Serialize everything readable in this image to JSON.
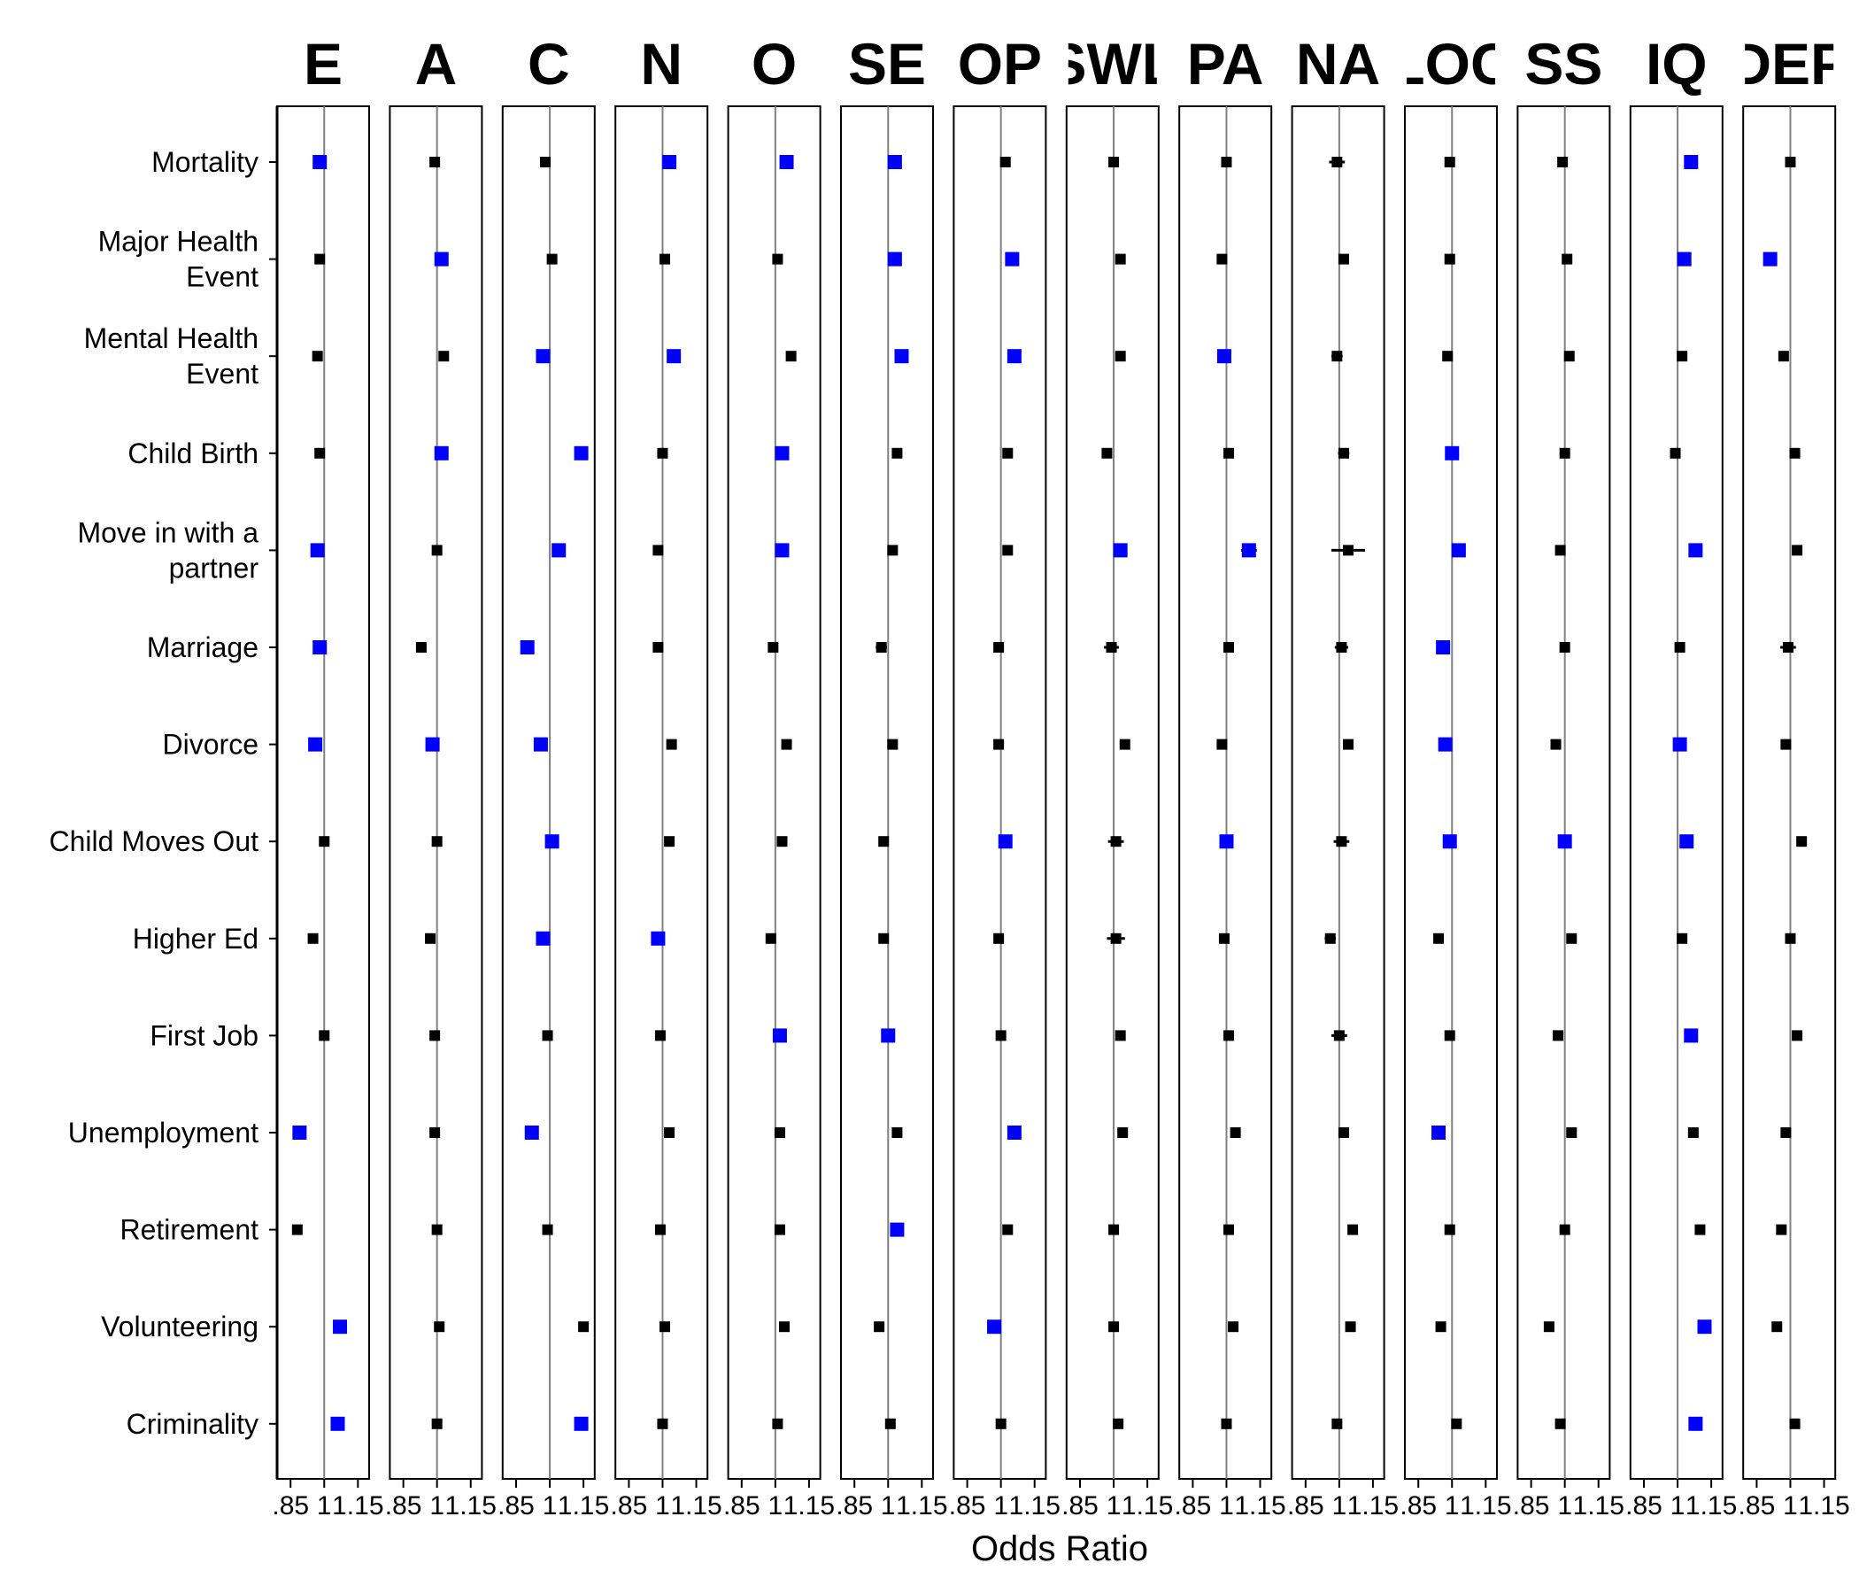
{
  "chart_data": {
    "type": "forest",
    "xlabel": "Odds Ratio",
    "xticks": [
      0.85,
      1,
      1.15
    ],
    "xtick_labels": [
      ".85",
      "1",
      "1.15"
    ],
    "xlim": [
      0.79,
      1.2
    ],
    "reference_line": 1,
    "grid": false,
    "colors": {
      "significant": "#0000ff",
      "nonsignificant": "#000000",
      "reference": "#808080"
    },
    "panels": [
      "E",
      "A",
      "C",
      "N",
      "O",
      "SE",
      "OP",
      "SWL",
      "PA",
      "NA",
      "LOC",
      "SS",
      "IQ",
      "DEP"
    ],
    "panel_titles": [
      "E",
      "A",
      "C",
      "N",
      "O",
      "SE",
      "OP",
      "SWL",
      "PA",
      "NA",
      "LOC",
      "SS",
      "IQ",
      "DEP"
    ],
    "events": [
      "Mortality",
      "Major Health\nEvent",
      "Mental Health\nEvent",
      "Child Birth",
      "Move in with a\npartner",
      "Marriage",
      "Divorce",
      "Child Moves Out",
      "Higher Ed",
      "First Job",
      "Unemployment",
      "Retirement",
      "Volunteering",
      "Criminality"
    ],
    "estimates": [
      [
        0.98,
        0.99,
        0.98,
        1.03,
        1.05,
        1.03,
        1.02,
        1.0,
        1.0,
        0.99,
        0.99,
        0.99,
        1.06,
        1.0
      ],
      [
        0.98,
        1.02,
        1.01,
        1.01,
        1.01,
        1.03,
        1.05,
        1.03,
        0.98,
        1.02,
        0.99,
        1.01,
        1.03,
        0.91
      ],
      [
        0.97,
        1.03,
        0.97,
        1.05,
        1.07,
        1.06,
        1.06,
        1.03,
        0.99,
        0.99,
        0.98,
        1.02,
        1.02,
        0.97
      ],
      [
        0.98,
        1.02,
        1.14,
        1.0,
        1.03,
        1.04,
        1.03,
        0.97,
        1.01,
        1.02,
        1.0,
        1.0,
        0.99,
        1.02
      ],
      [
        0.97,
        1.0,
        1.04,
        0.98,
        1.03,
        1.02,
        1.03,
        1.03,
        1.1,
        1.04,
        1.03,
        0.98,
        1.08,
        1.03
      ],
      [
        0.98,
        0.93,
        0.9,
        0.98,
        0.99,
        0.97,
        0.99,
        0.99,
        1.01,
        1.01,
        0.96,
        1.0,
        1.01,
        0.99
      ],
      [
        0.96,
        0.98,
        0.96,
        1.04,
        1.05,
        1.02,
        0.99,
        1.05,
        0.98,
        1.04,
        0.97,
        0.96,
        1.01,
        0.98
      ],
      [
        1.0,
        1.0,
        1.01,
        1.03,
        1.03,
        0.98,
        1.02,
        1.01,
        1.0,
        1.01,
        0.99,
        1.0,
        1.04,
        1.05
      ],
      [
        0.95,
        0.97,
        0.97,
        0.98,
        0.98,
        0.98,
        0.99,
        1.01,
        0.99,
        0.96,
        0.94,
        1.03,
        1.02,
        1.0
      ],
      [
        1.0,
        0.99,
        0.99,
        0.99,
        1.02,
        1.0,
        1.0,
        1.03,
        1.01,
        1.0,
        0.99,
        0.97,
        1.06,
        1.03
      ],
      [
        0.89,
        0.99,
        0.92,
        1.03,
        1.02,
        1.04,
        1.06,
        1.04,
        1.04,
        1.02,
        0.94,
        1.03,
        1.07,
        0.98
      ],
      [
        0.88,
        1.0,
        0.99,
        0.99,
        1.02,
        1.04,
        1.03,
        1.0,
        1.01,
        1.06,
        0.99,
        1.0,
        1.1,
        0.96
      ],
      [
        1.07,
        1.01,
        1.15,
        1.01,
        1.04,
        0.96,
        0.97,
        1.0,
        1.03,
        1.05,
        0.95,
        0.93,
        1.12,
        0.94
      ],
      [
        1.06,
        1.0,
        1.14,
        1.0,
        1.01,
        1.01,
        1.0,
        1.02,
        1.0,
        0.99,
        1.02,
        0.98,
        1.08,
        1.02
      ]
    ],
    "ci_halfwidth": [
      [
        0.0,
        0.0,
        0.0,
        0.0,
        0.0,
        0.0,
        0.0,
        0.015,
        0.015,
        0.035,
        0.0,
        0.0,
        0.0,
        0.012
      ],
      [
        0.0,
        0.0,
        0.0,
        0.0,
        0.0,
        0.0,
        0.0,
        0.022,
        0.015,
        0.02,
        0.0,
        0.0,
        0.0,
        0.0
      ],
      [
        0.0,
        0.0,
        0.0,
        0.0,
        0.0,
        0.0,
        0.0,
        0.022,
        0.015,
        0.025,
        0.0,
        0.0,
        0.012,
        0.012
      ],
      [
        0.0,
        0.0,
        0.0,
        0.0,
        0.0,
        0.0,
        0.0,
        0.02,
        0.0,
        0.025,
        0.0,
        0.0,
        0.0,
        0.02
      ],
      [
        0.0,
        0.0,
        0.0,
        0.0,
        0.0,
        0.0,
        0.0,
        0.0,
        0.035,
        0.075,
        0.0,
        0.0,
        0.0,
        0.022
      ],
      [
        0.0,
        0.0,
        0.0,
        0.0,
        0.0,
        0.025,
        0.0,
        0.033,
        0.0,
        0.03,
        0.0,
        0.022,
        0.0,
        0.035
      ],
      [
        0.0,
        0.0,
        0.0,
        0.0,
        0.0,
        0.0,
        0.0,
        0.0,
        0.0,
        0.0,
        0.0,
        0.0,
        0.0,
        0.0
      ],
      [
        0.0,
        0.0,
        0.0,
        0.0,
        0.0,
        0.0,
        0.0,
        0.035,
        0.0,
        0.035,
        0.0,
        0.02,
        0.0,
        0.0
      ],
      [
        0.0,
        0.0,
        0.0,
        0.0,
        0.0,
        0.0,
        0.0,
        0.04,
        0.0,
        0.025,
        0.0,
        0.022,
        0.0,
        0.015
      ],
      [
        0.0,
        0.0,
        0.0,
        0.0,
        0.0,
        0.0,
        0.0,
        0.0,
        0.0,
        0.035,
        0.0,
        0.0,
        0.0,
        0.0
      ],
      [
        0.0,
        0.0,
        0.0,
        0.0,
        0.0,
        0.0,
        0.0,
        0.0,
        0.0,
        0.0,
        0.0,
        0.0,
        0.0,
        0.0
      ],
      [
        0.0,
        0.0,
        0.0,
        0.0,
        0.0,
        0.0,
        0.0,
        0.0,
        0.0,
        0.0,
        0.0,
        0.0,
        0.0,
        0.0
      ],
      [
        0.0,
        0.0,
        0.0,
        0.0,
        0.0,
        0.0,
        0.0,
        0.0,
        0.0,
        0.0,
        0.0,
        0.0,
        0.0,
        0.0
      ],
      [
        0.0,
        0.0,
        0.0,
        0.0,
        0.0,
        0.0,
        0.0,
        0.0,
        0.0,
        0.0,
        0.0,
        0.0,
        0.0,
        0.0
      ]
    ],
    "significant": [
      [
        true,
        false,
        false,
        true,
        true,
        true,
        false,
        false,
        false,
        false,
        false,
        false,
        true,
        false
      ],
      [
        false,
        true,
        false,
        false,
        false,
        true,
        true,
        false,
        false,
        false,
        false,
        false,
        true,
        true
      ],
      [
        false,
        false,
        true,
        true,
        false,
        true,
        true,
        false,
        true,
        false,
        false,
        false,
        false,
        false
      ],
      [
        false,
        true,
        true,
        false,
        true,
        false,
        false,
        false,
        false,
        false,
        true,
        false,
        false,
        false
      ],
      [
        true,
        false,
        true,
        false,
        true,
        false,
        false,
        true,
        true,
        false,
        true,
        false,
        true,
        false
      ],
      [
        true,
        false,
        true,
        false,
        false,
        false,
        false,
        false,
        false,
        false,
        true,
        false,
        false,
        false
      ],
      [
        true,
        true,
        true,
        false,
        false,
        false,
        false,
        false,
        false,
        false,
        true,
        false,
        true,
        false
      ],
      [
        false,
        false,
        true,
        false,
        false,
        false,
        true,
        false,
        true,
        false,
        true,
        true,
        true,
        false
      ],
      [
        false,
        false,
        true,
        true,
        false,
        false,
        false,
        false,
        false,
        false,
        false,
        false,
        false,
        false
      ],
      [
        false,
        false,
        false,
        false,
        true,
        true,
        false,
        false,
        false,
        false,
        false,
        false,
        true,
        false
      ],
      [
        true,
        false,
        true,
        false,
        false,
        false,
        true,
        false,
        false,
        false,
        true,
        false,
        false,
        false
      ],
      [
        false,
        false,
        false,
        false,
        false,
        true,
        false,
        false,
        false,
        false,
        false,
        false,
        false,
        false
      ],
      [
        true,
        false,
        false,
        false,
        false,
        false,
        true,
        false,
        false,
        false,
        false,
        false,
        true,
        false
      ],
      [
        true,
        false,
        true,
        false,
        false,
        false,
        false,
        false,
        false,
        false,
        false,
        false,
        true,
        false
      ]
    ]
  }
}
